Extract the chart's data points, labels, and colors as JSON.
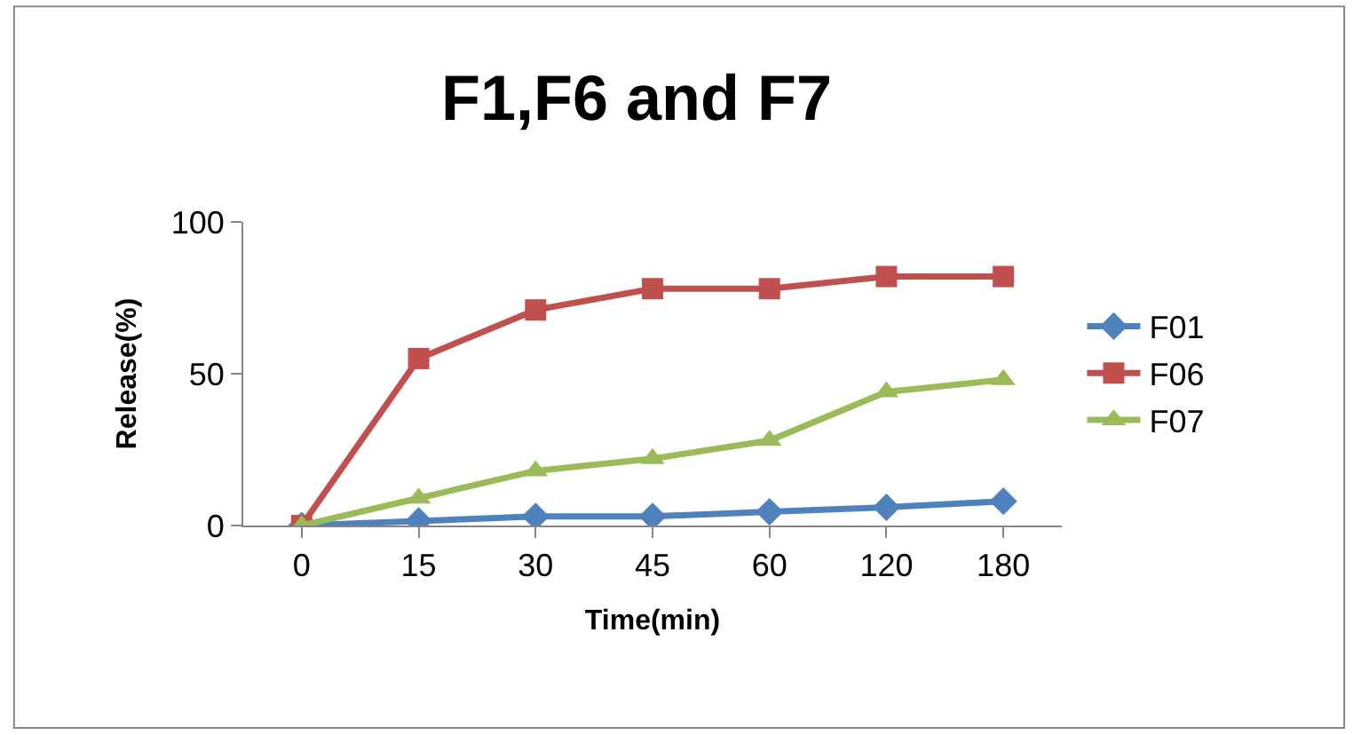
{
  "chart_data": {
    "type": "line",
    "title": "F1,F6 and F7",
    "xlabel": "Time(min)",
    "ylabel": "Release(%)",
    "categories": [
      "0",
      "15",
      "30",
      "45",
      "60",
      "120",
      "180"
    ],
    "series": [
      {
        "name": "F01",
        "color": "#4f81bd",
        "marker": "diamond",
        "values": [
          0,
          1.5,
          3,
          3,
          4.5,
          6,
          8
        ]
      },
      {
        "name": "F06",
        "color": "#c0504d",
        "marker": "square",
        "values": [
          0,
          55,
          71,
          78,
          78,
          82,
          82
        ]
      },
      {
        "name": "F07",
        "color": "#9bbb59",
        "marker": "triangle",
        "values": [
          0,
          9,
          18,
          22,
          28,
          44,
          48
        ]
      }
    ],
    "ylim": [
      0,
      100
    ],
    "yticks": [
      0,
      50,
      100
    ],
    "legend": "right",
    "line_style": "solid"
  }
}
